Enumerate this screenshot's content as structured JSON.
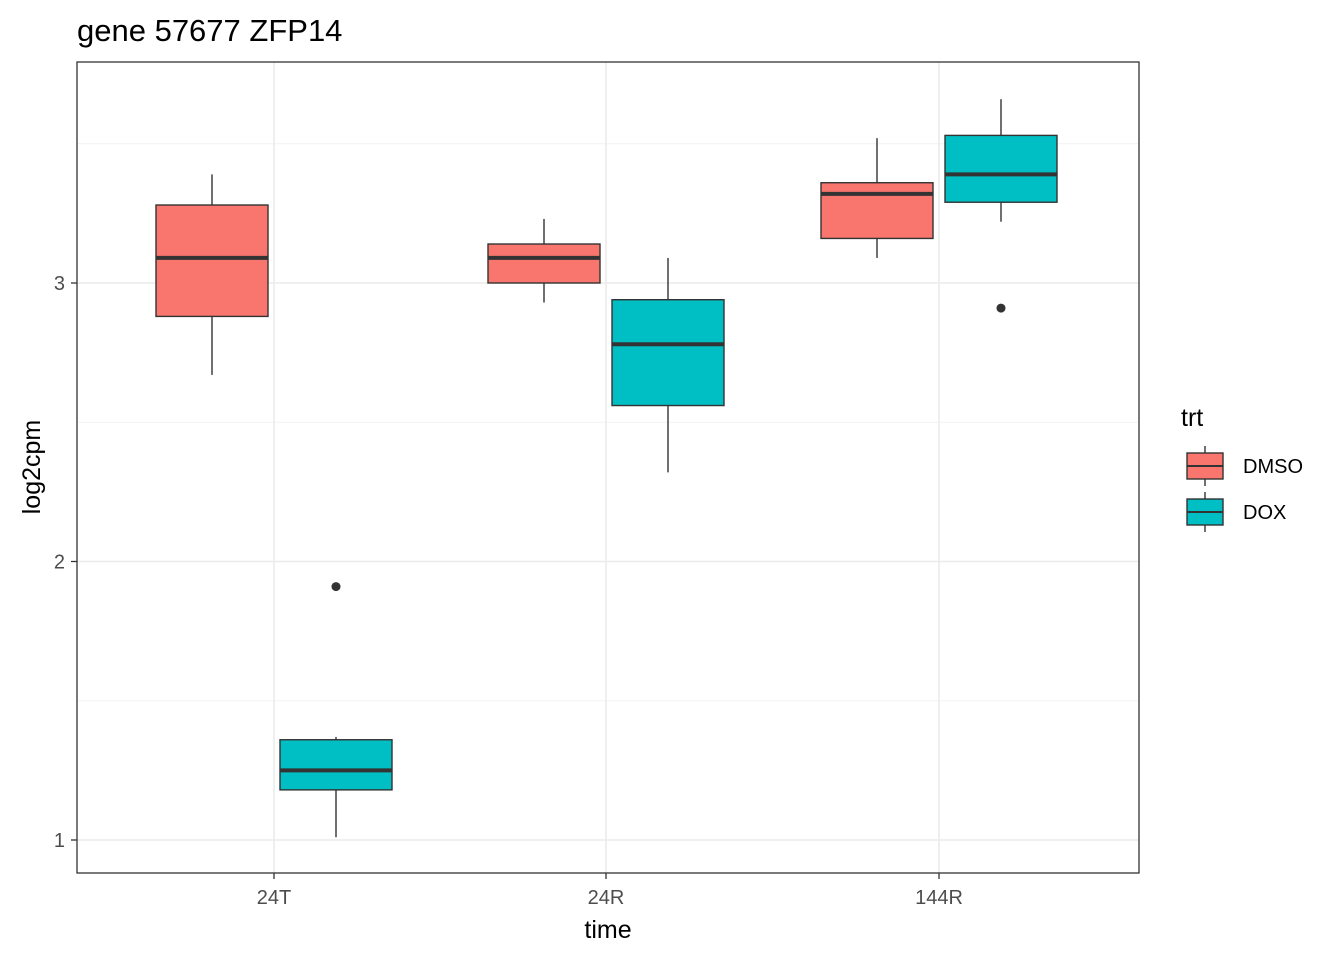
{
  "chart_data": {
    "type": "boxplot",
    "title": "gene 57677 ZFP14",
    "xlabel": "time",
    "ylabel": "log2cpm",
    "categories": [
      "24T",
      "24R",
      "144R"
    ],
    "y_ticks": [
      "1",
      "2",
      "3"
    ],
    "ylim": [
      0.88,
      3.8
    ],
    "grid": true,
    "legend": {
      "title": "trt",
      "position": "right",
      "entries": [
        "DMSO",
        "DOX"
      ]
    },
    "colors": {
      "DMSO": "#F8766D",
      "DOX": "#00BFC4",
      "outline": "#333333"
    },
    "series": [
      {
        "name": "DMSO",
        "boxes": [
          {
            "category": "24T",
            "whisker_low": 2.67,
            "q1": 2.88,
            "median": 3.09,
            "q3": 3.28,
            "whisker_high": 3.39,
            "outliers": []
          },
          {
            "category": "24R",
            "whisker_low": 2.93,
            "q1": 3.0,
            "median": 3.09,
            "q3": 3.14,
            "whisker_high": 3.23,
            "outliers": []
          },
          {
            "category": "144R",
            "whisker_low": 3.09,
            "q1": 3.16,
            "median": 3.32,
            "q3": 3.36,
            "whisker_high": 3.52,
            "outliers": []
          }
        ]
      },
      {
        "name": "DOX",
        "boxes": [
          {
            "category": "24T",
            "whisker_low": 1.01,
            "q1": 1.18,
            "median": 1.25,
            "q3": 1.36,
            "whisker_high": 1.37,
            "outliers": [
              1.91
            ]
          },
          {
            "category": "24R",
            "whisker_low": 2.32,
            "q1": 2.56,
            "median": 2.78,
            "q3": 2.94,
            "whisker_high": 3.09,
            "outliers": []
          },
          {
            "category": "144R",
            "whisker_low": 3.22,
            "q1": 3.29,
            "median": 3.39,
            "q3": 3.53,
            "whisker_high": 3.66,
            "outliers": [
              2.91
            ]
          }
        ]
      }
    ]
  }
}
